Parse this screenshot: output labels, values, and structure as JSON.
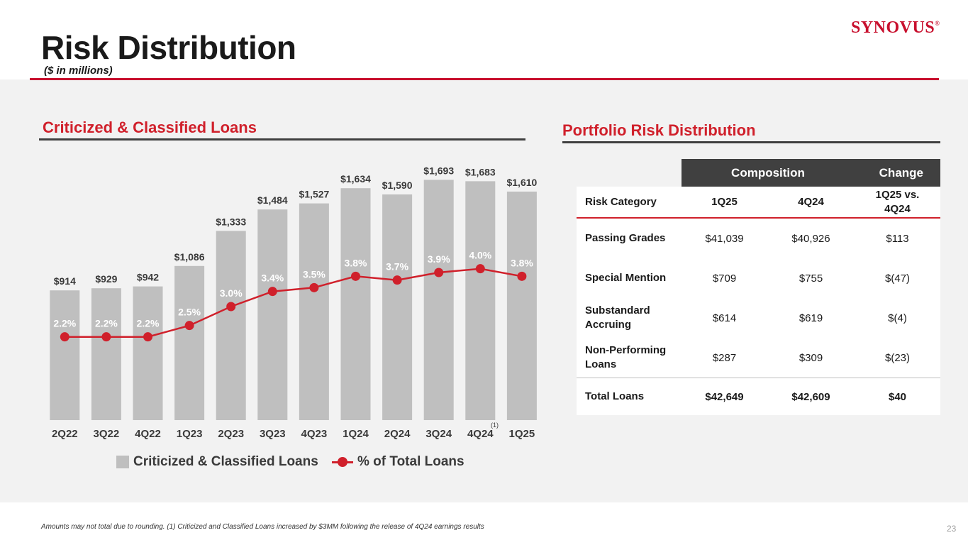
{
  "header": {
    "title": "Risk Distribution",
    "subtitle": "($ in millions)",
    "logo": "SYNOVUS",
    "logo_mark": "®"
  },
  "left_section": {
    "title": "Criticized & Classified Loans"
  },
  "right_section": {
    "title": "Portfolio Risk Distribution"
  },
  "chart_data": {
    "type": "bar",
    "title": "Criticized & Classified Loans",
    "categories": [
      "2Q22",
      "3Q22",
      "4Q22",
      "1Q23",
      "2Q23",
      "3Q23",
      "4Q23",
      "1Q24",
      "2Q24",
      "3Q24",
      "4Q24",
      "1Q25"
    ],
    "series": [
      {
        "name": "Criticized & Classified Loans",
        "type": "bar",
        "values": [
          914,
          929,
          942,
          1086,
          1333,
          1484,
          1527,
          1634,
          1590,
          1693,
          1683,
          1610
        ],
        "labels": [
          "$914",
          "$929",
          "$942",
          "$1,086",
          "$1,333",
          "$1,484",
          "$1,527",
          "$1,634",
          "$1,590",
          "$1,693",
          "$1,683",
          "$1,610"
        ]
      },
      {
        "name": "% of Total Loans",
        "type": "line",
        "values": [
          2.2,
          2.2,
          2.2,
          2.5,
          3.0,
          3.4,
          3.5,
          3.8,
          3.7,
          3.9,
          4.0,
          3.8
        ],
        "labels": [
          "2.2%",
          "2.2%",
          "2.2%",
          "2.5%",
          "3.0%",
          "3.4%",
          "3.5%",
          "3.8%",
          "3.7%",
          "3.9%",
          "4.0%",
          "3.8%"
        ]
      }
    ],
    "footnote_marker": "(1)",
    "legend": {
      "position": "bottom",
      "bar_label": "Criticized & Classified Loans",
      "line_label": "% of Total Loans"
    },
    "ylim": [
      0,
      1800
    ],
    "pct_ylim": [
      0,
      4.5
    ],
    "colors": {
      "bar": "#bfbfbf",
      "line": "#d0202b"
    }
  },
  "table": {
    "group_headers": {
      "composition": "Composition",
      "change": "Change"
    },
    "columns": [
      "Risk Category",
      "1Q25",
      "4Q24",
      "1Q25 vs. 4Q24"
    ],
    "rows": [
      {
        "category": "Passing Grades",
        "q1_25": "$41,039",
        "q4_24": "$40,926",
        "change": "$113"
      },
      {
        "category": "Special Mention",
        "q1_25": "$709",
        "q4_24": "$755",
        "change": "$(47)"
      },
      {
        "category": "Substandard Accruing",
        "q1_25": "$614",
        "q4_24": "$619",
        "change": "$(4)"
      },
      {
        "category": "Non-Performing Loans",
        "q1_25": "$287",
        "q4_24": "$309",
        "change": "$(23)"
      }
    ],
    "total": {
      "category": "Total Loans",
      "q1_25": "$42,649",
      "q4_24": "$42,609",
      "change": "$40"
    }
  },
  "footnote": "Amounts may not total due to rounding. (1) Criticized and Classified Loans increased by $3MM following the release of 4Q24 earnings results",
  "page_number": "23",
  "colors": {
    "accent_red": "#c8102e",
    "section_red": "#d0202b",
    "dark_header": "#404040",
    "band": "#f2f2f2"
  }
}
